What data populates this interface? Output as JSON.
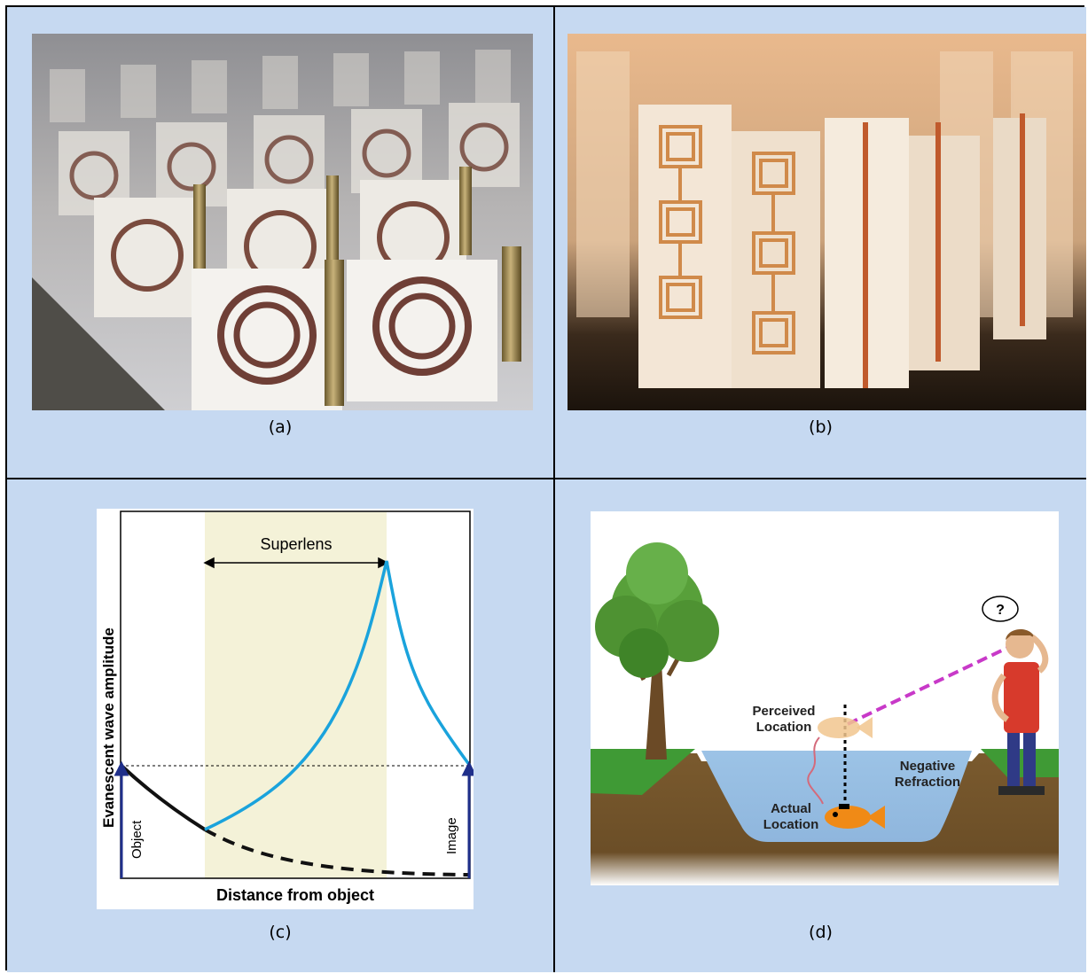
{
  "panels": {
    "a": {
      "caption": "(a)"
    },
    "b": {
      "caption": "(b)"
    },
    "c": {
      "caption": "(c)",
      "ylabel": "Evanescent wave amplitude",
      "xlabel": "Distance from object",
      "superlens_label": "Superlens",
      "object_label": "Object",
      "image_label": "Image"
    },
    "d": {
      "caption": "(d)",
      "perceived_label_1": "Perceived",
      "perceived_label_2": "Location",
      "negative_label_1": "Negative",
      "negative_label_2": "Refraction",
      "actual_label_1": "Actual",
      "actual_label_2": "Location",
      "question_mark": "?"
    }
  },
  "colors": {
    "cell_background": "#c6d9f1",
    "superlens_band": "#f4f2d8",
    "amplified_wave": "#1aa3dc",
    "decaying_wave": "#111111",
    "arrow_navy": "#1f2f8a"
  }
}
